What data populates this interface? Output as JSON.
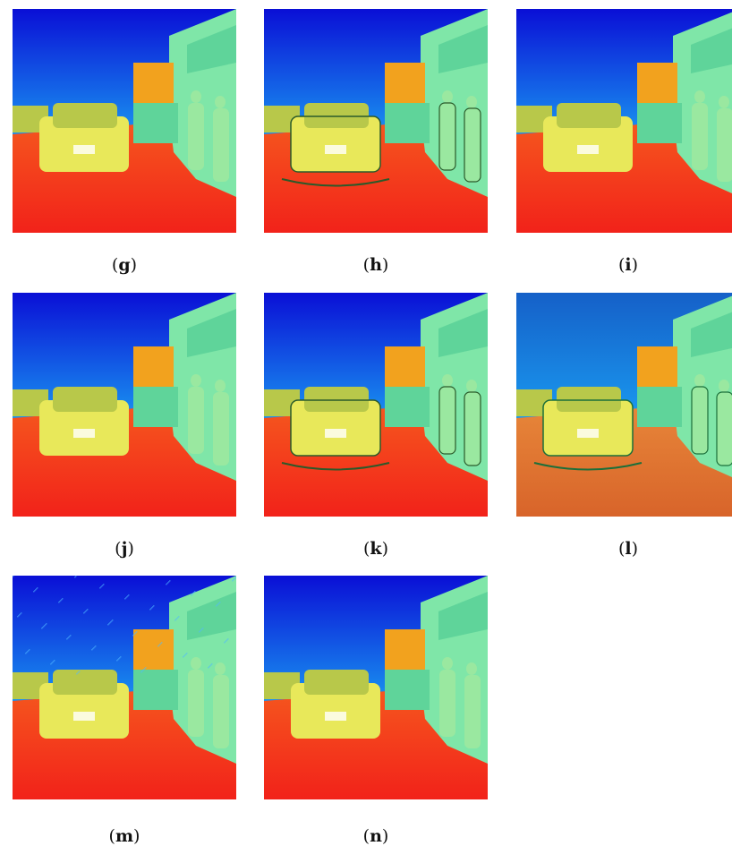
{
  "panels": [
    {
      "id": "g",
      "label": "(g)",
      "variant": "base"
    },
    {
      "id": "h",
      "label": "(h)",
      "variant": "edge"
    },
    {
      "id": "i",
      "label": "(i)",
      "variant": "smooth"
    },
    {
      "id": "j",
      "label": "(j)",
      "variant": "base"
    },
    {
      "id": "k",
      "label": "(k)",
      "variant": "edge"
    },
    {
      "id": "l",
      "label": "(l)",
      "variant": "muted"
    },
    {
      "id": "m",
      "label": "(m)",
      "variant": "grain"
    },
    {
      "id": "n",
      "label": "(n)",
      "variant": "smooth"
    }
  ],
  "colors": {
    "sky_top": "#0a0fd6",
    "sky_mid": "#1a9cf2",
    "sky_low": "#22e6f0",
    "building": "#7fe6a8",
    "building_shade": "#5fd49a",
    "orange_block": "#f2a21e",
    "car": "#e8e85a",
    "car_dark": "#b8c84a",
    "ground": "#f2221a",
    "ground_far": "#f55a1e",
    "people": "#9ae8a0"
  }
}
